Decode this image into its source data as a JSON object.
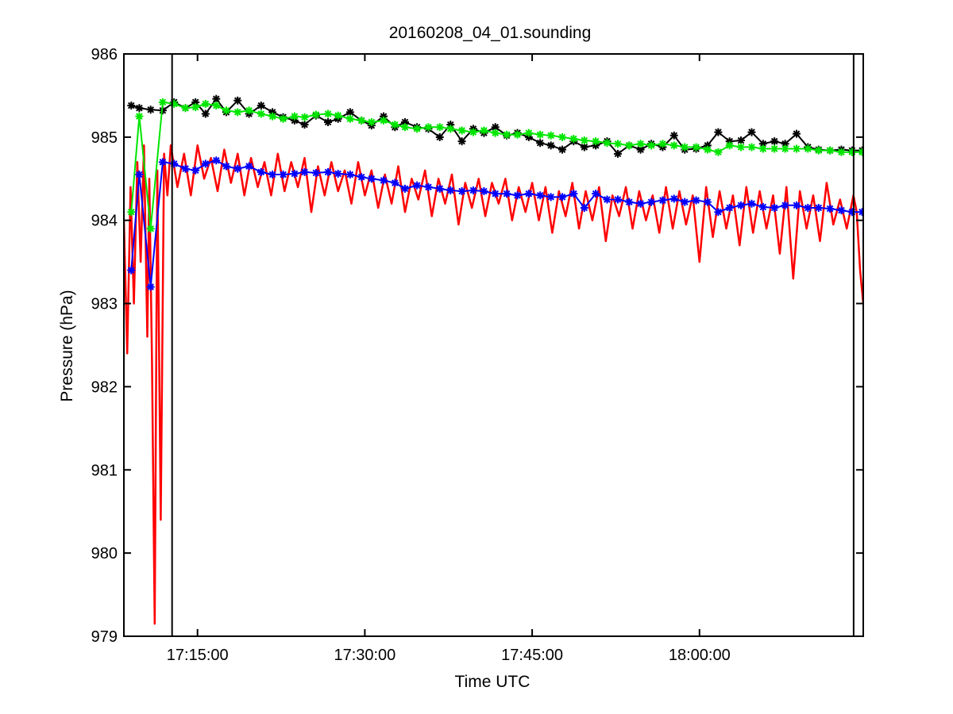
{
  "chart_data": {
    "type": "line",
    "title": "20160208_04_01.sounding",
    "xlabel": "Time UTC",
    "ylabel": "Pressure (hPa)",
    "x_unit": "time of day (UTC, hours)",
    "xlim": [
      17.14,
      18.2447
    ],
    "ylim": [
      979,
      986
    ],
    "x_ticks": [
      17.25,
      17.5,
      17.75,
      18.0
    ],
    "x_tick_labels": [
      "17:15:00",
      "17:30:00",
      "17:45:00",
      "18:00:00"
    ],
    "y_ticks": [
      979,
      980,
      981,
      982,
      983,
      984,
      985,
      986
    ],
    "y_tick_labels": [
      "979",
      "980",
      "981",
      "982",
      "983",
      "984",
      "985",
      "986"
    ],
    "grid": false,
    "legend": "none",
    "vertical_lines": [
      17.212,
      18.2303
    ],
    "colors": {
      "red": "#ff0000",
      "blue": "#0000ff",
      "green": "#00e600",
      "black": "#000000"
    },
    "series": [
      {
        "color": "#000000",
        "marker": "asterisk",
        "x": [
          17.151,
          17.163,
          17.18,
          17.198,
          17.215,
          17.232,
          17.247,
          17.262,
          17.278,
          17.293,
          17.31,
          17.327,
          17.345,
          17.362,
          17.378,
          17.395,
          17.41,
          17.427,
          17.445,
          17.46,
          17.478,
          17.495,
          17.51,
          17.528,
          17.545,
          17.56,
          17.578,
          17.595,
          17.612,
          17.628,
          17.645,
          17.662,
          17.678,
          17.695,
          17.712,
          17.728,
          17.745,
          17.762,
          17.778,
          17.795,
          17.812,
          17.828,
          17.845,
          17.862,
          17.878,
          17.895,
          17.912,
          17.928,
          17.945,
          17.962,
          17.978,
          17.995,
          18.012,
          18.028,
          18.045,
          18.062,
          18.078,
          18.095,
          18.112,
          18.128,
          18.145,
          18.162,
          18.178,
          18.195,
          18.212,
          18.228,
          18.243
        ],
        "y": [
          985.38,
          985.35,
          985.33,
          985.32,
          985.42,
          985.35,
          985.42,
          985.28,
          985.46,
          985.3,
          985.44,
          985.28,
          985.38,
          985.3,
          985.24,
          985.2,
          985.15,
          985.26,
          985.18,
          985.22,
          985.3,
          985.2,
          985.14,
          985.25,
          985.12,
          985.18,
          985.12,
          985.1,
          985.0,
          985.15,
          984.95,
          985.1,
          985.05,
          985.12,
          985.02,
          985.05,
          985.0,
          984.93,
          984.9,
          984.85,
          984.95,
          984.88,
          984.9,
          984.95,
          984.8,
          984.9,
          984.85,
          984.92,
          984.88,
          985.02,
          984.85,
          984.86,
          984.9,
          985.06,
          984.95,
          984.96,
          985.06,
          984.92,
          984.95,
          984.92,
          985.04,
          984.88,
          984.85,
          984.84,
          984.85,
          984.84,
          984.84
        ]
      },
      {
        "color": "#00e600",
        "marker": "asterisk",
        "x": [
          17.151,
          17.163,
          17.18,
          17.198,
          17.215,
          17.232,
          17.247,
          17.262,
          17.278,
          17.293,
          17.31,
          17.327,
          17.345,
          17.362,
          17.378,
          17.395,
          17.41,
          17.427,
          17.445,
          17.46,
          17.478,
          17.495,
          17.51,
          17.528,
          17.545,
          17.56,
          17.578,
          17.595,
          17.612,
          17.628,
          17.645,
          17.662,
          17.678,
          17.695,
          17.712,
          17.728,
          17.745,
          17.762,
          17.778,
          17.795,
          17.812,
          17.828,
          17.845,
          17.862,
          17.878,
          17.895,
          17.912,
          17.928,
          17.945,
          17.962,
          17.978,
          17.995,
          18.012,
          18.028,
          18.045,
          18.062,
          18.078,
          18.095,
          18.112,
          18.128,
          18.145,
          18.162,
          18.178,
          18.195,
          18.212,
          18.228,
          18.243
        ],
        "y": [
          984.1,
          985.25,
          983.9,
          985.42,
          985.4,
          985.35,
          985.36,
          985.4,
          985.38,
          985.32,
          985.3,
          985.32,
          985.28,
          985.25,
          985.22,
          985.25,
          985.24,
          985.27,
          985.28,
          985.26,
          985.22,
          985.2,
          985.18,
          985.2,
          985.15,
          985.12,
          985.1,
          985.12,
          985.12,
          985.1,
          985.08,
          985.06,
          985.08,
          985.05,
          985.03,
          985.03,
          985.05,
          985.03,
          985.02,
          985.0,
          984.98,
          984.96,
          984.95,
          984.93,
          984.92,
          984.9,
          984.92,
          984.9,
          984.92,
          984.9,
          984.88,
          984.88,
          984.85,
          984.82,
          984.9,
          984.88,
          984.88,
          984.86,
          984.86,
          984.86,
          984.86,
          984.86,
          984.84,
          984.84,
          984.82,
          984.82,
          984.82
        ]
      },
      {
        "color": "#0000ff",
        "marker": "asterisk",
        "x": [
          17.151,
          17.163,
          17.18,
          17.198,
          17.215,
          17.232,
          17.247,
          17.262,
          17.278,
          17.293,
          17.31,
          17.327,
          17.345,
          17.362,
          17.378,
          17.395,
          17.41,
          17.427,
          17.445,
          17.46,
          17.478,
          17.495,
          17.51,
          17.528,
          17.545,
          17.56,
          17.578,
          17.595,
          17.612,
          17.628,
          17.645,
          17.662,
          17.678,
          17.695,
          17.712,
          17.728,
          17.745,
          17.762,
          17.778,
          17.795,
          17.812,
          17.828,
          17.845,
          17.862,
          17.878,
          17.895,
          17.912,
          17.928,
          17.945,
          17.962,
          17.978,
          17.995,
          18.012,
          18.028,
          18.045,
          18.062,
          18.078,
          18.095,
          18.112,
          18.128,
          18.145,
          18.162,
          18.178,
          18.195,
          18.212,
          18.228,
          18.243
        ],
        "y": [
          983.4,
          984.55,
          983.2,
          984.7,
          984.68,
          984.62,
          984.6,
          984.68,
          984.72,
          984.65,
          984.62,
          984.65,
          984.58,
          984.55,
          984.55,
          984.56,
          984.58,
          984.57,
          984.58,
          984.56,
          984.55,
          984.52,
          984.5,
          984.48,
          984.45,
          984.38,
          984.42,
          984.4,
          984.38,
          984.36,
          984.35,
          984.36,
          984.35,
          984.32,
          984.32,
          984.3,
          984.32,
          984.3,
          984.28,
          984.28,
          984.32,
          984.15,
          984.32,
          984.25,
          984.25,
          984.22,
          984.2,
          984.22,
          984.24,
          984.26,
          984.22,
          984.24,
          984.22,
          984.1,
          984.15,
          984.18,
          984.2,
          984.16,
          984.15,
          984.18,
          984.18,
          984.15,
          984.15,
          984.14,
          984.12,
          984.1,
          984.1
        ]
      },
      {
        "color": "#ff0000",
        "marker": "none",
        "x": [
          17.14,
          17.145,
          17.15,
          17.155,
          17.16,
          17.165,
          17.17,
          17.175,
          17.178,
          17.182,
          17.186,
          17.19,
          17.195,
          17.2,
          17.205,
          17.21,
          17.22,
          17.23,
          17.24,
          17.25,
          17.26,
          17.27,
          17.28,
          17.29,
          17.3,
          17.31,
          17.32,
          17.33,
          17.34,
          17.35,
          17.36,
          17.37,
          17.38,
          17.39,
          17.4,
          17.41,
          17.42,
          17.43,
          17.44,
          17.45,
          17.46,
          17.47,
          17.48,
          17.49,
          17.5,
          17.51,
          17.52,
          17.53,
          17.54,
          17.55,
          17.56,
          17.57,
          17.58,
          17.59,
          17.6,
          17.61,
          17.62,
          17.63,
          17.64,
          17.65,
          17.66,
          17.67,
          17.68,
          17.69,
          17.7,
          17.71,
          17.72,
          17.73,
          17.74,
          17.75,
          17.76,
          17.77,
          17.78,
          17.79,
          17.8,
          17.81,
          17.82,
          17.83,
          17.84,
          17.85,
          17.86,
          17.87,
          17.88,
          17.89,
          17.9,
          17.91,
          17.92,
          17.93,
          17.94,
          17.95,
          17.96,
          17.97,
          17.98,
          17.99,
          18.0,
          18.01,
          18.02,
          18.03,
          18.04,
          18.05,
          18.06,
          18.07,
          18.08,
          18.09,
          18.1,
          18.11,
          18.12,
          18.13,
          18.14,
          18.15,
          18.16,
          18.17,
          18.18,
          18.19,
          18.2,
          18.21,
          18.22,
          18.23,
          18.235,
          18.24,
          18.2447
        ],
        "y": [
          984.0,
          982.4,
          984.4,
          983.0,
          984.7,
          983.5,
          984.9,
          982.6,
          984.5,
          982.3,
          979.15,
          984.6,
          980.4,
          984.8,
          984.3,
          984.9,
          984.4,
          984.8,
          984.3,
          984.9,
          984.5,
          984.75,
          984.35,
          984.85,
          984.45,
          984.8,
          984.3,
          984.75,
          984.4,
          984.7,
          984.3,
          984.8,
          984.35,
          984.7,
          984.4,
          984.75,
          984.1,
          984.65,
          984.3,
          984.7,
          984.35,
          984.6,
          984.2,
          984.7,
          984.3,
          984.6,
          984.15,
          984.55,
          984.2,
          984.65,
          984.1,
          984.5,
          984.25,
          984.6,
          984.05,
          984.5,
          984.2,
          984.55,
          983.95,
          984.45,
          984.15,
          984.5,
          984.05,
          984.45,
          984.2,
          984.5,
          984.0,
          984.4,
          984.1,
          984.45,
          984.0,
          984.4,
          983.85,
          984.35,
          984.05,
          984.45,
          983.9,
          984.35,
          984.0,
          984.4,
          983.75,
          984.3,
          984.05,
          984.4,
          983.9,
          984.35,
          984.0,
          984.3,
          983.85,
          984.4,
          983.9,
          984.35,
          983.95,
          984.3,
          983.5,
          984.4,
          983.8,
          984.35,
          983.9,
          984.3,
          983.7,
          984.4,
          983.85,
          984.35,
          983.9,
          984.3,
          983.6,
          984.4,
          983.3,
          984.35,
          983.9,
          984.3,
          983.75,
          984.45,
          983.95,
          984.25,
          983.9,
          984.3,
          984.1,
          983.4,
          983.0
        ]
      }
    ]
  }
}
